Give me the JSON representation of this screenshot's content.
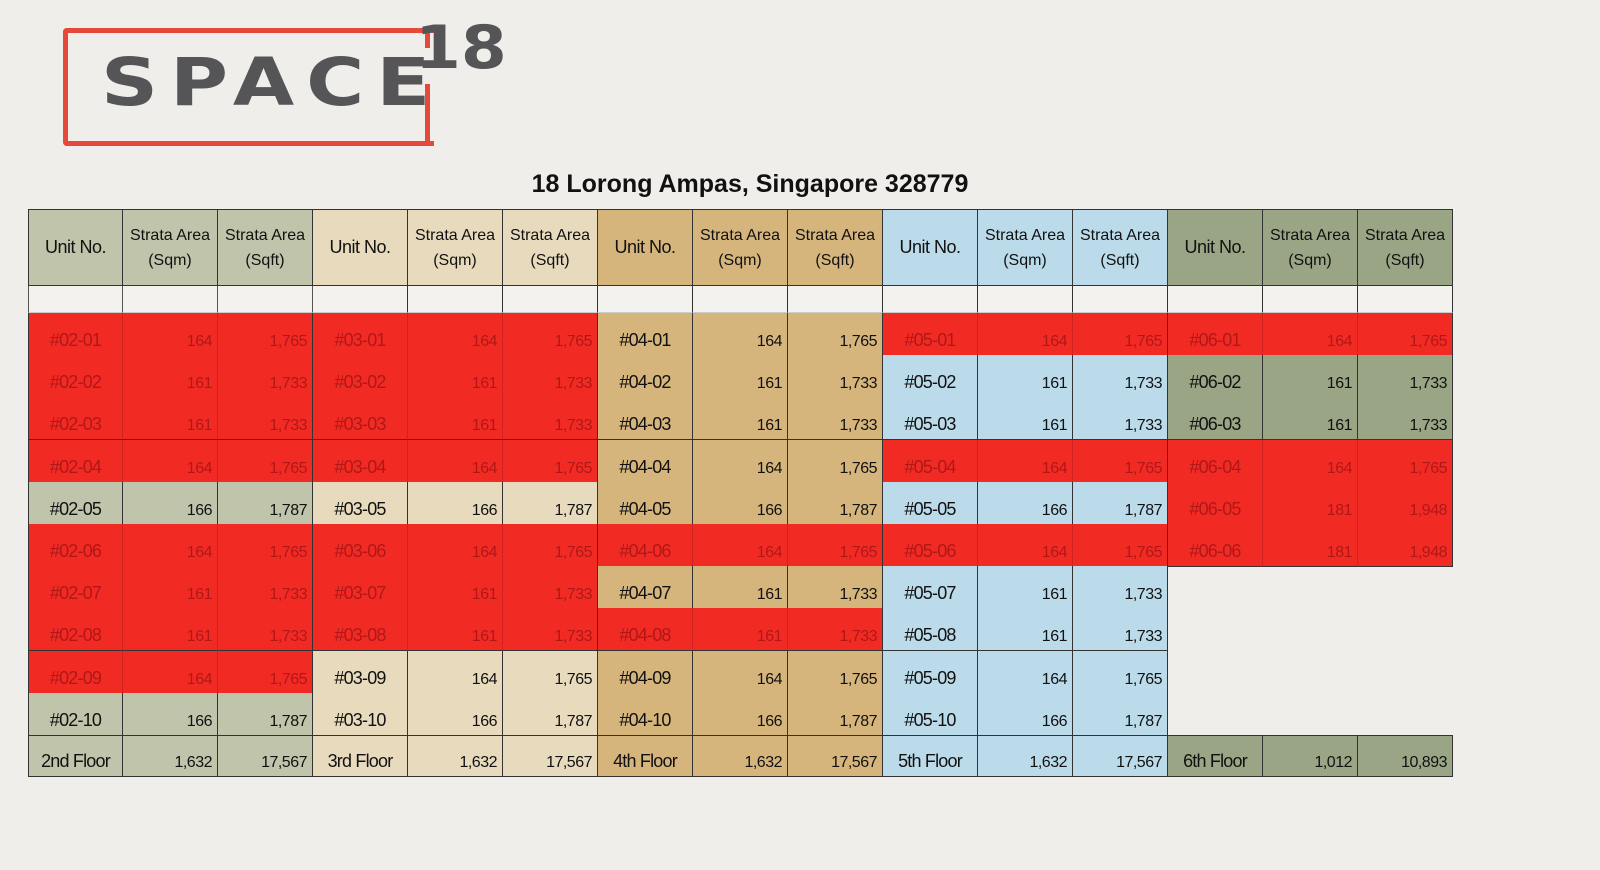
{
  "logo": {
    "word": "SPACE",
    "number": "18",
    "frame_color": "#e5493a",
    "text_color": "#555558"
  },
  "title": "18 Lorong Ampas, Singapore 328779",
  "headers": {
    "unit": "Unit No.",
    "sqm": "Strata Area\n(Sqm)",
    "sqft": "Strata Area\n(Sqft)"
  },
  "sold_color": "#f22a24",
  "floors": [
    {
      "name": "2nd Floor",
      "bg": "#c0c4ab",
      "total_sqm": "1,632",
      "total_sqft": "17,567",
      "units": [
        {
          "unit": "#02-01",
          "sqm": "164",
          "sqft": "1,765",
          "sold": true
        },
        {
          "unit": "#02-02",
          "sqm": "161",
          "sqft": "1,733",
          "sold": true
        },
        {
          "unit": "#02-03",
          "sqm": "161",
          "sqft": "1,733",
          "sold": true
        },
        {
          "unit": "#02-04",
          "sqm": "164",
          "sqft": "1,765",
          "sold": true
        },
        {
          "unit": "#02-05",
          "sqm": "166",
          "sqft": "1,787",
          "sold": false
        },
        {
          "unit": "#02-06",
          "sqm": "164",
          "sqft": "1,765",
          "sold": true
        },
        {
          "unit": "#02-07",
          "sqm": "161",
          "sqft": "1,733",
          "sold": true
        },
        {
          "unit": "#02-08",
          "sqm": "161",
          "sqft": "1,733",
          "sold": true
        },
        {
          "unit": "#02-09",
          "sqm": "164",
          "sqft": "1,765",
          "sold": true
        },
        {
          "unit": "#02-10",
          "sqm": "166",
          "sqft": "1,787",
          "sold": false
        }
      ]
    },
    {
      "name": "3rd Floor",
      "bg": "#e8dbbd",
      "total_sqm": "1,632",
      "total_sqft": "17,567",
      "units": [
        {
          "unit": "#03-01",
          "sqm": "164",
          "sqft": "1,765",
          "sold": true
        },
        {
          "unit": "#03-02",
          "sqm": "161",
          "sqft": "1,733",
          "sold": true
        },
        {
          "unit": "#03-03",
          "sqm": "161",
          "sqft": "1,733",
          "sold": true
        },
        {
          "unit": "#03-04",
          "sqm": "164",
          "sqft": "1,765",
          "sold": true
        },
        {
          "unit": "#03-05",
          "sqm": "166",
          "sqft": "1,787",
          "sold": false
        },
        {
          "unit": "#03-06",
          "sqm": "164",
          "sqft": "1,765",
          "sold": true
        },
        {
          "unit": "#03-07",
          "sqm": "161",
          "sqft": "1,733",
          "sold": true
        },
        {
          "unit": "#03-08",
          "sqm": "161",
          "sqft": "1,733",
          "sold": true
        },
        {
          "unit": "#03-09",
          "sqm": "164",
          "sqft": "1,765",
          "sold": false
        },
        {
          "unit": "#03-10",
          "sqm": "166",
          "sqft": "1,787",
          "sold": false
        }
      ]
    },
    {
      "name": "4th Floor",
      "bg": "#d6b57d",
      "total_sqm": "1,632",
      "total_sqft": "17,567",
      "units": [
        {
          "unit": "#04-01",
          "sqm": "164",
          "sqft": "1,765",
          "sold": false
        },
        {
          "unit": "#04-02",
          "sqm": "161",
          "sqft": "1,733",
          "sold": false
        },
        {
          "unit": "#04-03",
          "sqm": "161",
          "sqft": "1,733",
          "sold": false
        },
        {
          "unit": "#04-04",
          "sqm": "164",
          "sqft": "1,765",
          "sold": false
        },
        {
          "unit": "#04-05",
          "sqm": "166",
          "sqft": "1,787",
          "sold": false
        },
        {
          "unit": "#04-06",
          "sqm": "164",
          "sqft": "1,765",
          "sold": true
        },
        {
          "unit": "#04-07",
          "sqm": "161",
          "sqft": "1,733",
          "sold": false
        },
        {
          "unit": "#04-08",
          "sqm": "161",
          "sqft": "1,733",
          "sold": true
        },
        {
          "unit": "#04-09",
          "sqm": "164",
          "sqft": "1,765",
          "sold": false
        },
        {
          "unit": "#04-10",
          "sqm": "166",
          "sqft": "1,787",
          "sold": false
        }
      ]
    },
    {
      "name": "5th Floor",
      "bg": "#bcdbea",
      "total_sqm": "1,632",
      "total_sqft": "17,567",
      "units": [
        {
          "unit": "#05-01",
          "sqm": "164",
          "sqft": "1,765",
          "sold": true
        },
        {
          "unit": "#05-02",
          "sqm": "161",
          "sqft": "1,733",
          "sold": false
        },
        {
          "unit": "#05-03",
          "sqm": "161",
          "sqft": "1,733",
          "sold": false
        },
        {
          "unit": "#05-04",
          "sqm": "164",
          "sqft": "1,765",
          "sold": true
        },
        {
          "unit": "#05-05",
          "sqm": "166",
          "sqft": "1,787",
          "sold": false
        },
        {
          "unit": "#05-06",
          "sqm": "164",
          "sqft": "1,765",
          "sold": true
        },
        {
          "unit": "#05-07",
          "sqm": "161",
          "sqft": "1,733",
          "sold": false
        },
        {
          "unit": "#05-08",
          "sqm": "161",
          "sqft": "1,733",
          "sold": false
        },
        {
          "unit": "#05-09",
          "sqm": "164",
          "sqft": "1,765",
          "sold": false
        },
        {
          "unit": "#05-10",
          "sqm": "166",
          "sqft": "1,787",
          "sold": false
        }
      ]
    },
    {
      "name": "6th Floor",
      "bg": "#9aa585",
      "total_sqm": "1,012",
      "total_sqft": "10,893",
      "units": [
        {
          "unit": "#06-01",
          "sqm": "164",
          "sqft": "1,765",
          "sold": true
        },
        {
          "unit": "#06-02",
          "sqm": "161",
          "sqft": "1,733",
          "sold": false
        },
        {
          "unit": "#06-03",
          "sqm": "161",
          "sqft": "1,733",
          "sold": false
        },
        {
          "unit": "#06-04",
          "sqm": "164",
          "sqft": "1,765",
          "sold": true
        },
        {
          "unit": "#06-05",
          "sqm": "181",
          "sqft": "1,948",
          "sold": true
        },
        {
          "unit": "#06-06",
          "sqm": "181",
          "sqft": "1,948",
          "sold": true
        }
      ]
    }
  ]
}
